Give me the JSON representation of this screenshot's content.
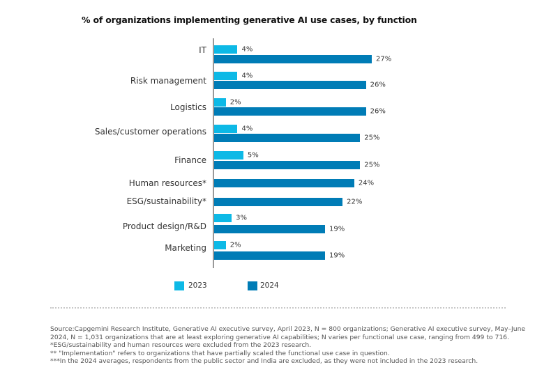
{
  "chart_data": {
    "type": "bar",
    "orientation": "horizontal",
    "title": "% of organizations implementing generative AI use cases, by function",
    "categories": [
      "IT",
      "Risk management",
      "Logistics",
      "Sales/customer operations",
      "Finance",
      "Human resources*",
      "ESG/sustainability*",
      "Product design/R&D",
      "Marketing"
    ],
    "series": [
      {
        "name": "2023",
        "color": "#0db9e6",
        "values": [
          4,
          4,
          2,
          4,
          5,
          null,
          null,
          3,
          2
        ],
        "labels": [
          "4%",
          "4%",
          "2%",
          "4%",
          "5%",
          null,
          null,
          "3%",
          "2%"
        ]
      },
      {
        "name": "2024",
        "color": "#007cb6",
        "values": [
          27,
          26,
          26,
          25,
          25,
          24,
          22,
          19,
          19
        ],
        "labels": [
          "27%",
          "26%",
          "26%",
          "25%",
          "25%",
          "24%",
          "22%",
          "19%",
          "19%"
        ]
      }
    ],
    "xlim": [
      0,
      30
    ],
    "grid": false,
    "legend_position": "bottom-left"
  },
  "notes": [
    "Source:Capgemini Research Institute, Generative AI executive survey, April 2023, N = 800 organizations; Generative AI executive survey, May–June",
    "2024, N = 1,031 organizations that are at least exploring generative AI capabilities; N varies per functional use case, ranging from 499 to 716.",
    "*ESG/sustainability and human resources were excluded from the 2023 research.",
    "** \"Implementation\" refers to organizations that have partially scaled the functional use case in question.",
    "***In the 2024 averages, respondents from the public sector and India are excluded, as they were not included in the 2023 research."
  ]
}
